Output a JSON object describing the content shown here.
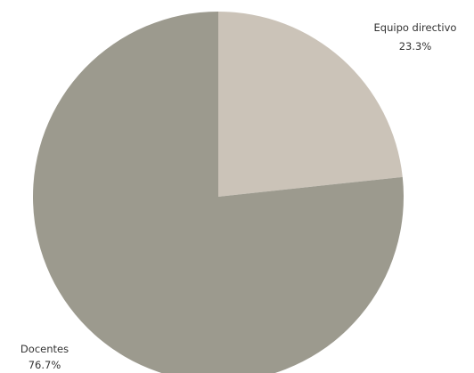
{
  "chart_data": {
    "type": "pie",
    "slices": [
      {
        "label": "Equipo directivo",
        "value": 23.3,
        "value_label": "23.3%",
        "color": "#cbc3b8"
      },
      {
        "label": "Docentes",
        "value": 76.7,
        "value_label": "76.7%",
        "color": "#9c9a8e"
      }
    ],
    "start_angle": "12 o'clock",
    "direction": "clockwise",
    "legend": "none"
  }
}
